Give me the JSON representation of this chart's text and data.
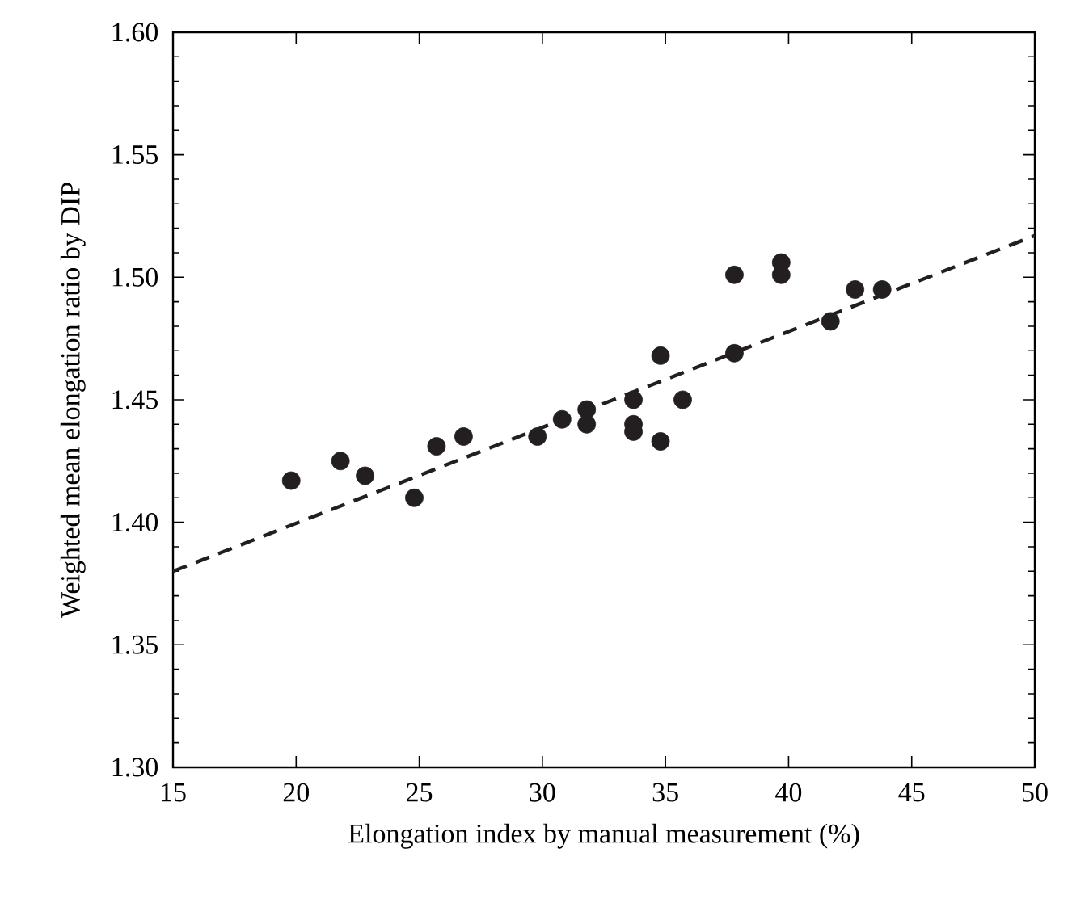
{
  "chart_data": {
    "type": "scatter",
    "xlabel": "Elongation index by manual measurement (%)",
    "ylabel": "Weighted mean elongation ratio by DIP",
    "xlim": [
      15,
      50
    ],
    "ylim": [
      1.3,
      1.6
    ],
    "xticks": [
      15,
      20,
      25,
      30,
      35,
      40,
      45,
      50
    ],
    "yticks": [
      {
        "value": 1.3,
        "label": "1.30"
      },
      1.35,
      {
        "value": 1.4,
        "label": "1.40"
      },
      1.45,
      {
        "value": 1.5,
        "label": "1.50"
      },
      1.55,
      {
        "value": 1.6,
        "label": "1.60"
      }
    ],
    "grid": false,
    "legend": false,
    "marker": "circle",
    "series": [
      {
        "color": "#231f20",
        "x": [
          19.8,
          21.8,
          22.8,
          24.8,
          25.7,
          26.8,
          29.8,
          30.8,
          31.8,
          31.8,
          33.7,
          33.7,
          33.7,
          34.8,
          34.8,
          35.7,
          37.8,
          37.8,
          39.7,
          39.7,
          41.7,
          42.7,
          43.8
        ],
        "values": [
          1.417,
          1.425,
          1.419,
          1.41,
          1.431,
          1.435,
          1.435,
          1.442,
          1.446,
          1.44,
          1.45,
          1.44,
          1.437,
          1.433,
          1.468,
          1.45,
          1.469,
          1.501,
          1.506,
          1.501,
          1.482,
          1.495,
          1.495
        ]
      },
      {
        "type": "line",
        "color": "#231f20",
        "line_style": "dashed",
        "marker": "none",
        "x": [
          15,
          50
        ],
        "values": [
          1.38,
          1.517
        ]
      }
    ]
  }
}
